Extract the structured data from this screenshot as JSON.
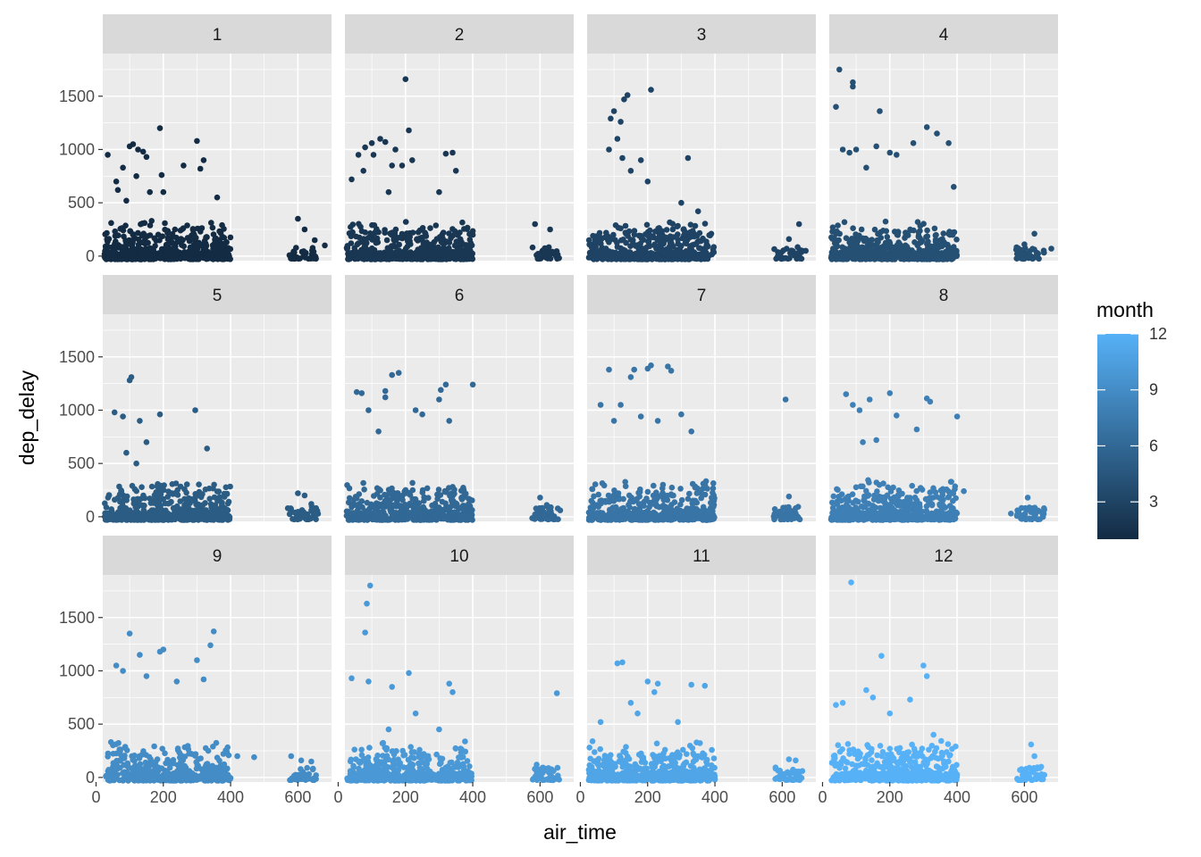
{
  "chart_data": {
    "type": "scatter",
    "facet_by": "month",
    "facet_layout": {
      "rows": 3,
      "cols": 4
    },
    "facets": [
      "1",
      "2",
      "3",
      "4",
      "5",
      "6",
      "7",
      "8",
      "9",
      "10",
      "11",
      "12"
    ],
    "xlabel": "air_time",
    "ylabel": "dep_delay",
    "xlim": [
      20,
      700
    ],
    "ylim": [
      -43,
      1900
    ],
    "x_ticks": [
      0,
      200,
      400,
      600
    ],
    "y_ticks": [
      0,
      500,
      1000,
      1500
    ],
    "grid": true,
    "color": {
      "variable": "month",
      "title": "month",
      "scale": "continuous",
      "range": [
        1,
        12
      ],
      "low_color": "#132B43",
      "high_color": "#56B1F7",
      "breaks": [
        3,
        6,
        9,
        12
      ]
    },
    "legend_position": "right",
    "series": [
      {
        "facet": "1",
        "points": [
          [
            35,
            950
          ],
          [
            60,
            700
          ],
          [
            65,
            620
          ],
          [
            80,
            830
          ],
          [
            100,
            1030
          ],
          [
            110,
            1050
          ],
          [
            120,
            750
          ],
          [
            125,
            1000
          ],
          [
            140,
            980
          ],
          [
            150,
            930
          ],
          [
            190,
            1200
          ],
          [
            195,
            760
          ],
          [
            260,
            850
          ],
          [
            300,
            1080
          ],
          [
            320,
            900
          ],
          [
            310,
            820
          ],
          [
            160,
            600
          ],
          [
            200,
            600
          ],
          [
            90,
            520
          ],
          [
            360,
            550
          ],
          [
            600,
            350
          ],
          [
            620,
            250
          ],
          [
            650,
            150
          ],
          [
            680,
            100
          ]
        ]
      },
      {
        "facet": "2",
        "points": [
          [
            40,
            720
          ],
          [
            60,
            950
          ],
          [
            75,
            800
          ],
          [
            80,
            1020
          ],
          [
            100,
            1060
          ],
          [
            105,
            950
          ],
          [
            125,
            1100
          ],
          [
            140,
            1070
          ],
          [
            160,
            850
          ],
          [
            170,
            1000
          ],
          [
            200,
            1660
          ],
          [
            210,
            1180
          ],
          [
            220,
            900
          ],
          [
            190,
            850
          ],
          [
            320,
            960
          ],
          [
            340,
            970
          ],
          [
            350,
            800
          ],
          [
            300,
            600
          ],
          [
            150,
            600
          ],
          [
            400,
            200
          ],
          [
            585,
            300
          ],
          [
            630,
            250
          ]
        ]
      },
      {
        "facet": "3",
        "points": [
          [
            85,
            1000
          ],
          [
            90,
            1290
          ],
          [
            100,
            1360
          ],
          [
            120,
            1260
          ],
          [
            130,
            1470
          ],
          [
            140,
            1510
          ],
          [
            210,
            1560
          ],
          [
            110,
            1100
          ],
          [
            125,
            920
          ],
          [
            180,
            900
          ],
          [
            320,
            920
          ],
          [
            200,
            700
          ],
          [
            150,
            800
          ],
          [
            300,
            500
          ],
          [
            350,
            420
          ],
          [
            620,
            160
          ],
          [
            650,
            300
          ],
          [
            670,
            50
          ]
        ]
      },
      {
        "facet": "4",
        "points": [
          [
            50,
            1750
          ],
          [
            90,
            1630
          ],
          [
            90,
            1590
          ],
          [
            40,
            1400
          ],
          [
            170,
            1360
          ],
          [
            310,
            1210
          ],
          [
            340,
            1150
          ],
          [
            375,
            1060
          ],
          [
            60,
            1000
          ],
          [
            80,
            970
          ],
          [
            100,
            1000
          ],
          [
            160,
            1030
          ],
          [
            200,
            970
          ],
          [
            220,
            950
          ],
          [
            270,
            1060
          ],
          [
            390,
            650
          ],
          [
            130,
            830
          ],
          [
            600,
            110
          ],
          [
            630,
            210
          ],
          [
            680,
            70
          ]
        ]
      },
      {
        "facet": "5",
        "points": [
          [
            105,
            1310
          ],
          [
            100,
            1280
          ],
          [
            55,
            980
          ],
          [
            80,
            940
          ],
          [
            130,
            900
          ],
          [
            190,
            960
          ],
          [
            295,
            1000
          ],
          [
            330,
            640
          ],
          [
            150,
            700
          ],
          [
            120,
            500
          ],
          [
            90,
            600
          ],
          [
            600,
            220
          ],
          [
            620,
            200
          ],
          [
            640,
            120
          ],
          [
            570,
            80
          ]
        ]
      },
      {
        "facet": "6",
        "points": [
          [
            55,
            1170
          ],
          [
            70,
            1160
          ],
          [
            90,
            1000
          ],
          [
            140,
            1180
          ],
          [
            140,
            1120
          ],
          [
            180,
            1350
          ],
          [
            160,
            1330
          ],
          [
            300,
            1100
          ],
          [
            305,
            1190
          ],
          [
            320,
            1240
          ],
          [
            400,
            1240
          ],
          [
            230,
            1000
          ],
          [
            250,
            960
          ],
          [
            330,
            900
          ],
          [
            120,
            800
          ],
          [
            600,
            180
          ],
          [
            620,
            110
          ],
          [
            660,
            60
          ]
        ]
      },
      {
        "facet": "7",
        "points": [
          [
            85,
            1380
          ],
          [
            150,
            1310
          ],
          [
            160,
            1380
          ],
          [
            210,
            1420
          ],
          [
            200,
            1390
          ],
          [
            260,
            1410
          ],
          [
            270,
            1370
          ],
          [
            120,
            1050
          ],
          [
            60,
            1050
          ],
          [
            300,
            960
          ],
          [
            100,
            900
          ],
          [
            180,
            940
          ],
          [
            230,
            900
          ],
          [
            330,
            800
          ],
          [
            610,
            1100
          ],
          [
            620,
            190
          ],
          [
            640,
            80
          ]
        ]
      },
      {
        "facet": "8",
        "points": [
          [
            70,
            1150
          ],
          [
            90,
            1050
          ],
          [
            110,
            1000
          ],
          [
            140,
            1100
          ],
          [
            200,
            1160
          ],
          [
            220,
            950
          ],
          [
            310,
            1110
          ],
          [
            320,
            1080
          ],
          [
            400,
            940
          ],
          [
            280,
            820
          ],
          [
            160,
            720
          ],
          [
            120,
            700
          ],
          [
            420,
            240
          ],
          [
            610,
            180
          ],
          [
            630,
            60
          ],
          [
            560,
            30
          ]
        ]
      },
      {
        "facet": "9",
        "points": [
          [
            100,
            1350
          ],
          [
            350,
            1370
          ],
          [
            340,
            1240
          ],
          [
            200,
            1200
          ],
          [
            190,
            1180
          ],
          [
            130,
            1150
          ],
          [
            60,
            1050
          ],
          [
            80,
            1000
          ],
          [
            150,
            950
          ],
          [
            240,
            900
          ],
          [
            300,
            1100
          ],
          [
            320,
            920
          ],
          [
            420,
            200
          ],
          [
            470,
            190
          ],
          [
            580,
            200
          ],
          [
            610,
            160
          ],
          [
            640,
            150
          ]
        ]
      },
      {
        "facet": "10",
        "points": [
          [
            95,
            1800
          ],
          [
            85,
            1630
          ],
          [
            80,
            1360
          ],
          [
            40,
            930
          ],
          [
            90,
            900
          ],
          [
            160,
            850
          ],
          [
            210,
            980
          ],
          [
            330,
            880
          ],
          [
            340,
            800
          ],
          [
            650,
            790
          ],
          [
            150,
            450
          ],
          [
            230,
            600
          ],
          [
            300,
            450
          ],
          [
            590,
            120
          ],
          [
            610,
            90
          ],
          [
            640,
            60
          ]
        ]
      },
      {
        "facet": "11",
        "points": [
          [
            110,
            1070
          ],
          [
            125,
            1080
          ],
          [
            200,
            900
          ],
          [
            230,
            880
          ],
          [
            220,
            800
          ],
          [
            330,
            870
          ],
          [
            370,
            860
          ],
          [
            150,
            700
          ],
          [
            170,
            600
          ],
          [
            290,
            520
          ],
          [
            60,
            520
          ],
          [
            620,
            170
          ],
          [
            640,
            160
          ],
          [
            660,
            60
          ]
        ]
      },
      {
        "facet": "12",
        "points": [
          [
            85,
            1830
          ],
          [
            175,
            1140
          ],
          [
            300,
            1050
          ],
          [
            310,
            950
          ],
          [
            260,
            730
          ],
          [
            150,
            750
          ],
          [
            130,
            820
          ],
          [
            60,
            700
          ],
          [
            40,
            680
          ],
          [
            200,
            600
          ],
          [
            330,
            400
          ],
          [
            620,
            310
          ],
          [
            630,
            200
          ],
          [
            650,
            100
          ],
          [
            600,
            70
          ]
        ]
      }
    ]
  }
}
